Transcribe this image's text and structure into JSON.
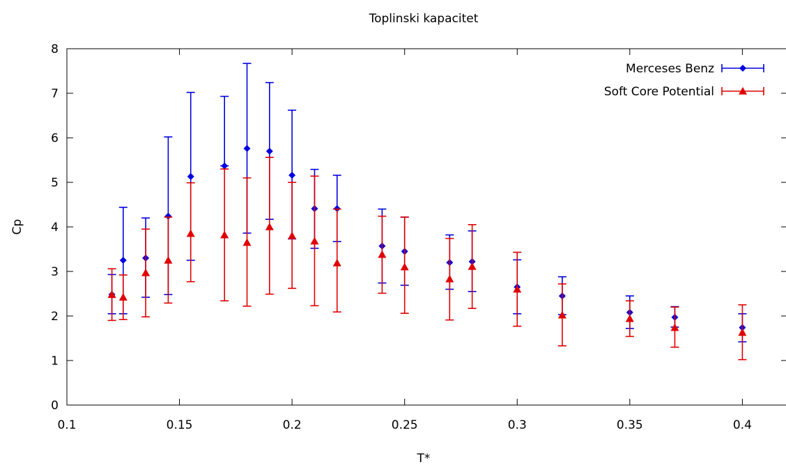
{
  "chart_data": {
    "type": "scatter",
    "title": "Toplinski kapacitet",
    "xlabel": "T*",
    "ylabel": "Cp",
    "xlim": [
      0.1,
      0.42
    ],
    "ylim": [
      0,
      8
    ],
    "x_ticks": [
      0.1,
      0.15,
      0.2,
      0.25,
      0.3,
      0.35,
      0.4
    ],
    "x_tick_labels": [
      "0.1",
      "0.15",
      "0.2",
      "0.25",
      "0.3",
      "0.35",
      "0.4"
    ],
    "y_ticks": [
      0,
      1,
      2,
      3,
      4,
      5,
      6,
      7,
      8
    ],
    "y_tick_labels": [
      "0",
      "1",
      "2",
      "3",
      "4",
      "5",
      "6",
      "7",
      "8"
    ],
    "grid": false,
    "legend_position": "top-right",
    "series": [
      {
        "name": "Merceses Benz",
        "color": "#0000e0",
        "marker": "diamond",
        "points": [
          {
            "x": 0.12,
            "y": 2.48,
            "low": 2.05,
            "high": 2.93
          },
          {
            "x": 0.125,
            "y": 3.25,
            "low": 2.05,
            "high": 4.44
          },
          {
            "x": 0.135,
            "y": 3.3,
            "low": 2.42,
            "high": 4.2
          },
          {
            "x": 0.145,
            "y": 4.24,
            "low": 2.48,
            "high": 6.02
          },
          {
            "x": 0.155,
            "y": 5.13,
            "low": 3.25,
            "high": 7.02
          },
          {
            "x": 0.17,
            "y": 5.37,
            "low": 5.37,
            "high": 6.93
          },
          {
            "x": 0.18,
            "y": 5.76,
            "low": 3.86,
            "high": 7.67
          },
          {
            "x": 0.19,
            "y": 5.7,
            "low": 4.17,
            "high": 7.24
          },
          {
            "x": 0.2,
            "y": 5.16,
            "low": 3.73,
            "high": 6.62
          },
          {
            "x": 0.21,
            "y": 4.41,
            "low": 3.52,
            "high": 5.29
          },
          {
            "x": 0.22,
            "y": 4.41,
            "low": 3.67,
            "high": 5.16
          },
          {
            "x": 0.24,
            "y": 3.57,
            "low": 2.74,
            "high": 4.4
          },
          {
            "x": 0.25,
            "y": 3.45,
            "low": 2.69,
            "high": 4.22
          },
          {
            "x": 0.27,
            "y": 3.2,
            "low": 2.6,
            "high": 3.82
          },
          {
            "x": 0.28,
            "y": 3.22,
            "low": 2.55,
            "high": 3.91
          },
          {
            "x": 0.3,
            "y": 2.65,
            "low": 2.05,
            "high": 3.26
          },
          {
            "x": 0.32,
            "y": 2.45,
            "low": 2.03,
            "high": 2.88
          },
          {
            "x": 0.35,
            "y": 2.08,
            "low": 1.72,
            "high": 2.45
          },
          {
            "x": 0.37,
            "y": 1.97,
            "low": 1.75,
            "high": 2.21
          },
          {
            "x": 0.4,
            "y": 1.74,
            "low": 1.42,
            "high": 2.05
          }
        ]
      },
      {
        "name": "Soft Core Potential",
        "color": "#e00000",
        "marker": "triangle",
        "points": [
          {
            "x": 0.12,
            "y": 2.48,
            "low": 1.9,
            "high": 3.06
          },
          {
            "x": 0.125,
            "y": 2.42,
            "low": 1.92,
            "high": 2.92
          },
          {
            "x": 0.135,
            "y": 2.97,
            "low": 1.98,
            "high": 3.95
          },
          {
            "x": 0.145,
            "y": 3.25,
            "low": 2.29,
            "high": 4.22
          },
          {
            "x": 0.155,
            "y": 3.85,
            "low": 2.77,
            "high": 4.99
          },
          {
            "x": 0.17,
            "y": 3.82,
            "low": 2.34,
            "high": 5.3
          },
          {
            "x": 0.18,
            "y": 3.65,
            "low": 2.22,
            "high": 5.1
          },
          {
            "x": 0.19,
            "y": 4.0,
            "low": 2.49,
            "high": 5.56
          },
          {
            "x": 0.2,
            "y": 3.8,
            "low": 2.62,
            "high": 5.0
          },
          {
            "x": 0.21,
            "y": 3.68,
            "low": 2.23,
            "high": 5.14
          },
          {
            "x": 0.22,
            "y": 3.19,
            "low": 2.09,
            "high": 4.4
          },
          {
            "x": 0.24,
            "y": 3.38,
            "low": 2.51,
            "high": 4.24
          },
          {
            "x": 0.25,
            "y": 3.1,
            "low": 2.06,
            "high": 4.22
          },
          {
            "x": 0.27,
            "y": 2.83,
            "low": 1.91,
            "high": 3.74
          },
          {
            "x": 0.28,
            "y": 3.11,
            "low": 2.17,
            "high": 4.05
          },
          {
            "x": 0.3,
            "y": 2.6,
            "low": 1.77,
            "high": 3.43
          },
          {
            "x": 0.32,
            "y": 2.02,
            "low": 1.33,
            "high": 2.72
          },
          {
            "x": 0.35,
            "y": 1.94,
            "low": 1.54,
            "high": 2.34
          },
          {
            "x": 0.37,
            "y": 1.74,
            "low": 1.3,
            "high": 2.2
          },
          {
            "x": 0.4,
            "y": 1.63,
            "low": 1.02,
            "high": 2.25
          }
        ]
      }
    ]
  }
}
